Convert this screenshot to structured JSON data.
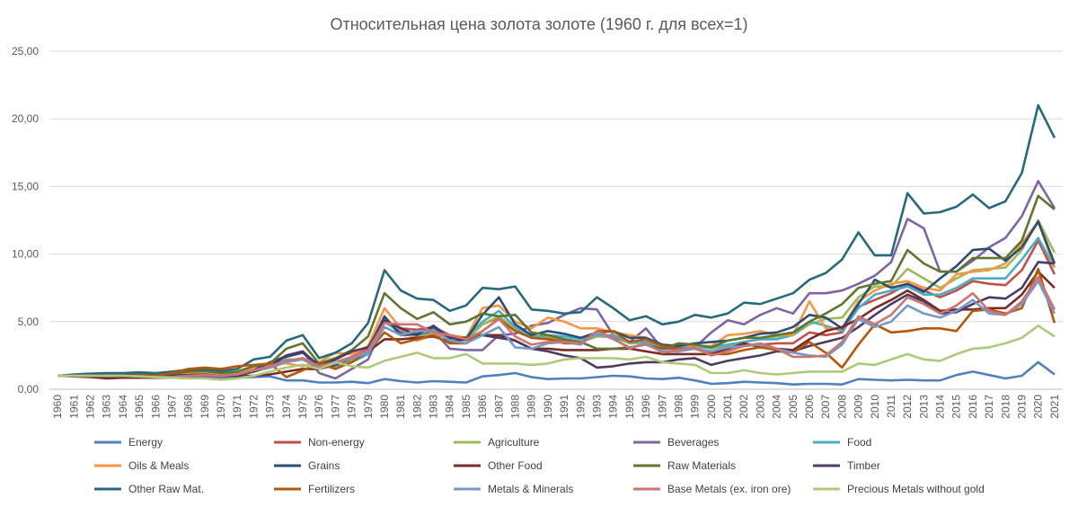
{
  "chart_data": {
    "type": "line",
    "title": "Относительная цена золота золоте (1960 г. для всех=1)",
    "xlabel": "",
    "ylabel": "",
    "ylim": [
      0,
      25
    ],
    "yticks": [
      "0,00",
      "5,00",
      "10,00",
      "15,00",
      "20,00",
      "25,00"
    ],
    "grid": true,
    "legend_position": "bottom",
    "x": [
      1960,
      1961,
      1962,
      1963,
      1964,
      1965,
      1966,
      1967,
      1968,
      1969,
      1970,
      1971,
      1972,
      1973,
      1974,
      1975,
      1976,
      1977,
      1978,
      1979,
      1980,
      1981,
      1982,
      1983,
      1984,
      1985,
      1986,
      1987,
      1988,
      1989,
      1990,
      1991,
      1992,
      1993,
      1994,
      1995,
      1996,
      1997,
      1998,
      1999,
      2000,
      2001,
      2002,
      2003,
      2004,
      2005,
      2006,
      2007,
      2008,
      2009,
      2010,
      2011,
      2012,
      2013,
      2014,
      2015,
      2016,
      2017,
      2018,
      2019,
      2020,
      2021
    ],
    "series": [
      {
        "name": "Energy",
        "color": "#4F81BD",
        "values": [
          1,
          1,
          0.95,
          0.9,
          0.85,
          0.85,
          0.85,
          0.85,
          0.85,
          0.85,
          0.8,
          0.85,
          0.9,
          0.95,
          0.65,
          0.65,
          0.5,
          0.5,
          0.55,
          0.45,
          0.75,
          0.6,
          0.5,
          0.6,
          0.55,
          0.5,
          0.95,
          1.05,
          1.2,
          0.9,
          0.75,
          0.8,
          0.8,
          0.9,
          1.0,
          0.95,
          0.8,
          0.75,
          0.85,
          0.65,
          0.4,
          0.45,
          0.55,
          0.5,
          0.45,
          0.35,
          0.4,
          0.4,
          0.35,
          0.75,
          0.7,
          0.65,
          0.7,
          0.65,
          0.65,
          1.05,
          1.3,
          1.05,
          0.8,
          1.0,
          2.0,
          1.1
        ]
      },
      {
        "name": "Non-energy",
        "color": "#C0504D",
        "values": [
          1,
          1,
          1,
          0.95,
          0.95,
          0.9,
          0.9,
          0.9,
          1.0,
          1.05,
          1.0,
          1.05,
          1.3,
          1.6,
          2.0,
          2.3,
          1.6,
          1.9,
          2.4,
          3.0,
          5.0,
          4.5,
          4.4,
          4.6,
          4.0,
          3.8,
          4.8,
          5.3,
          4.3,
          3.9,
          3.8,
          3.6,
          3.5,
          3.9,
          3.9,
          3.4,
          3.5,
          3.1,
          3.1,
          3.0,
          2.7,
          3.0,
          3.3,
          3.3,
          3.4,
          3.4,
          4.2,
          4.0,
          4.2,
          6.1,
          6.6,
          7.1,
          7.8,
          7.3,
          6.8,
          7.3,
          8.0,
          7.8,
          7.7,
          8.8,
          11.0,
          8.5
        ]
      },
      {
        "name": "Agriculture",
        "color": "#9BBB59",
        "values": [
          1,
          1,
          1,
          1,
          1,
          1,
          1,
          1,
          1.05,
          1.1,
          1.0,
          1.1,
          1.3,
          1.6,
          2.0,
          2.3,
          1.6,
          1.8,
          2.1,
          2.8,
          5.0,
          4.3,
          3.8,
          4.2,
          3.8,
          3.6,
          4.8,
          5.4,
          4.5,
          3.9,
          3.9,
          3.7,
          3.5,
          3.9,
          4.0,
          3.4,
          3.4,
          3.1,
          3.1,
          3.2,
          3.0,
          3.2,
          3.5,
          3.7,
          3.9,
          4.0,
          4.8,
          5.2,
          5.3,
          6.8,
          7.6,
          7.6,
          8.9,
          8.2,
          7.5,
          8.2,
          8.8,
          8.9,
          9.0,
          10.3,
          12.5,
          10.1
        ]
      },
      {
        "name": "Beverages",
        "color": "#8064A2",
        "values": [
          1,
          1,
          1,
          1,
          1,
          1,
          1,
          1,
          1,
          1,
          0.95,
          1.0,
          1.5,
          1.9,
          2.5,
          2.8,
          1.2,
          0.8,
          1.5,
          2.2,
          5.0,
          4.2,
          4.0,
          4.3,
          3.0,
          2.9,
          2.9,
          4.0,
          4.1,
          4.7,
          4.9,
          5.5,
          6.0,
          5.9,
          4.0,
          3.5,
          4.5,
          3.0,
          3.0,
          3.1,
          4.2,
          5.1,
          4.8,
          5.5,
          6.0,
          5.6,
          7.1,
          7.1,
          7.3,
          7.8,
          8.4,
          9.4,
          12.6,
          11.9,
          8.7,
          8.7,
          9.5,
          10.5,
          11.2,
          12.8,
          15.4,
          13.4
        ]
      },
      {
        "name": "Food",
        "color": "#4BACC6",
        "values": [
          1,
          1,
          1,
          1,
          1,
          1,
          1,
          1,
          1.1,
          1.1,
          1.0,
          1.1,
          1.4,
          1.8,
          2.2,
          2.2,
          1.6,
          1.7,
          2.0,
          2.6,
          5.2,
          4.0,
          4.0,
          4.5,
          3.7,
          3.8,
          5.0,
          5.8,
          4.6,
          3.8,
          4.0,
          3.9,
          3.7,
          4.0,
          4.0,
          3.5,
          3.5,
          3.2,
          3.2,
          3.1,
          3.1,
          3.3,
          3.5,
          3.7,
          3.7,
          4.0,
          5.0,
          4.7,
          4.3,
          6.0,
          7.0,
          7.3,
          7.6,
          7.0,
          7.0,
          7.5,
          8.2,
          8.2,
          8.2,
          9.6,
          11.2,
          9.0
        ]
      },
      {
        "name": "Oils & Meals",
        "color": "#F79646",
        "values": [
          1,
          1,
          1,
          1,
          1,
          1,
          1,
          1.1,
          1.2,
          1.2,
          1.1,
          1.2,
          1.5,
          2.0,
          1.9,
          1.7,
          2.0,
          2.7,
          2.6,
          3.2,
          6.0,
          4.5,
          3.6,
          4.0,
          4.0,
          3.8,
          6.0,
          6.2,
          5.0,
          4.5,
          5.3,
          5.0,
          4.5,
          4.5,
          4.2,
          4.0,
          3.8,
          3.2,
          3.3,
          3.2,
          3.2,
          4.0,
          4.1,
          4.3,
          4.0,
          4.0,
          6.5,
          4.5,
          4.5,
          6.5,
          7.3,
          7.8,
          8.0,
          7.5,
          7.3,
          8.5,
          8.7,
          8.8,
          9.3,
          10.8,
          12.4,
          9.0
        ]
      },
      {
        "name": "Grains",
        "color": "#2C4D75",
        "values": [
          1,
          1,
          1,
          1,
          1,
          1,
          1,
          1,
          1.05,
          1.05,
          1.0,
          1.1,
          1.4,
          2.0,
          2.4,
          2.7,
          1.8,
          1.8,
          2.3,
          2.9,
          5.4,
          4.0,
          4.1,
          4.6,
          3.8,
          3.7,
          5.5,
          6.8,
          4.8,
          4.0,
          4.3,
          4.1,
          3.8,
          4.2,
          4.3,
          3.8,
          3.8,
          3.3,
          3.2,
          3.4,
          3.5,
          3.6,
          3.8,
          4.1,
          4.2,
          4.6,
          5.5,
          5.3,
          4.5,
          6.3,
          8.1,
          7.5,
          7.8,
          7.2,
          8.2,
          9.1,
          10.3,
          10.4,
          9.5,
          10.5,
          12.4,
          9.3
        ]
      },
      {
        "name": "Other Food",
        "color": "#772C2A",
        "values": [
          1,
          0.95,
          0.9,
          0.8,
          0.85,
          0.85,
          0.85,
          0.9,
          1.0,
          1.05,
          1.0,
          1.0,
          1.0,
          1.1,
          1.3,
          1.5,
          1.5,
          1.8,
          2.3,
          2.8,
          3.7,
          3.7,
          3.8,
          3.9,
          3.5,
          3.7,
          4.0,
          4.0,
          3.6,
          3.0,
          3.0,
          2.9,
          2.9,
          2.9,
          3.0,
          3.0,
          2.8,
          2.6,
          2.6,
          2.6,
          2.6,
          3.0,
          3.4,
          3.1,
          3.0,
          2.9,
          3.7,
          4.3,
          4.6,
          5.2,
          6.0,
          6.6,
          7.3,
          6.6,
          5.8,
          5.9,
          5.9,
          6.0,
          6.0,
          7.0,
          8.7,
          7.5
        ]
      },
      {
        "name": "Raw Materials",
        "color": "#5F7530",
        "values": [
          1,
          1.05,
          1.1,
          1.1,
          1.1,
          1.1,
          1.1,
          1.15,
          1.3,
          1.35,
          1.2,
          1.3,
          1.7,
          1.9,
          3.0,
          3.4,
          1.9,
          2.3,
          2.9,
          3.9,
          7.1,
          6.0,
          5.2,
          5.7,
          4.8,
          5.0,
          5.6,
          5.4,
          5.5,
          4.2,
          4.0,
          3.7,
          3.5,
          3.0,
          3.0,
          3.1,
          3.3,
          3.0,
          3.4,
          3.3,
          3.1,
          3.6,
          3.8,
          3.8,
          4.0,
          4.2,
          5.0,
          5.6,
          6.3,
          7.5,
          7.8,
          8.0,
          10.3,
          9.3,
          8.7,
          8.7,
          9.7,
          9.7,
          9.7,
          11.0,
          14.3,
          13.3
        ]
      },
      {
        "name": "Timber",
        "color": "#4D3B62",
        "values": [
          1,
          1,
          1,
          1,
          1,
          1,
          1,
          1,
          1.05,
          1.1,
          1.0,
          1.0,
          1.3,
          1.7,
          2.5,
          2.8,
          1.7,
          2.2,
          2.8,
          3.1,
          5.1,
          4.5,
          4.0,
          4.7,
          3.8,
          3.8,
          4.0,
          3.8,
          3.6,
          3.0,
          2.8,
          2.5,
          2.3,
          1.6,
          1.7,
          1.9,
          2.0,
          2.0,
          2.2,
          2.3,
          1.8,
          2.1,
          2.3,
          2.5,
          2.8,
          2.8,
          3.2,
          3.5,
          3.8,
          4.6,
          5.5,
          6.3,
          7.0,
          6.5,
          5.6,
          5.7,
          6.3,
          6.8,
          6.7,
          7.5,
          9.4,
          9.3
        ]
      },
      {
        "name": "Other Raw Mat.",
        "color": "#276A7C",
        "values": [
          1,
          1.1,
          1.15,
          1.2,
          1.2,
          1.25,
          1.2,
          1.3,
          1.45,
          1.5,
          1.35,
          1.5,
          2.2,
          2.4,
          3.6,
          4.0,
          2.3,
          2.7,
          3.4,
          4.9,
          8.8,
          7.3,
          6.7,
          6.6,
          5.8,
          6.2,
          7.5,
          7.4,
          7.6,
          5.9,
          5.8,
          5.6,
          5.7,
          6.8,
          6.0,
          5.1,
          5.4,
          4.8,
          5.0,
          5.5,
          5.3,
          5.6,
          6.4,
          6.3,
          6.7,
          7.1,
          8.1,
          8.6,
          9.6,
          11.6,
          9.9,
          9.9,
          14.5,
          13.0,
          13.1,
          13.5,
          14.4,
          13.4,
          13.9,
          16.0,
          21.0,
          18.6
        ]
      },
      {
        "name": "Fertilizers",
        "color": "#B65708",
        "values": [
          1,
          1,
          1,
          1,
          1,
          1,
          1,
          1.2,
          1.5,
          1.6,
          1.5,
          1.7,
          1.8,
          1.9,
          0.9,
          1.4,
          1.9,
          1.5,
          2.0,
          2.8,
          4.2,
          3.4,
          3.7,
          4.0,
          3.4,
          3.4,
          4.3,
          5.2,
          4.3,
          3.8,
          3.7,
          3.4,
          3.4,
          4.3,
          4.3,
          3.5,
          3.7,
          3.2,
          3.0,
          3.0,
          2.6,
          2.6,
          2.9,
          3.1,
          2.9,
          2.7,
          3.5,
          2.7,
          1.6,
          3.3,
          4.8,
          4.2,
          4.3,
          4.5,
          4.5,
          4.3,
          5.8,
          5.9,
          5.6,
          6.0,
          8.9,
          4.9
        ]
      },
      {
        "name": "Metals  & Minerals",
        "color": "#729ACA",
        "values": [
          1,
          1,
          1,
          1,
          1,
          0.95,
          0.9,
          0.9,
          1.0,
          1.05,
          1.0,
          1.1,
          1.4,
          1.6,
          2.0,
          2.2,
          1.6,
          1.9,
          2.3,
          2.7,
          4.6,
          4.0,
          4.3,
          4.3,
          3.6,
          3.4,
          4.0,
          4.6,
          3.1,
          3.0,
          3.4,
          3.5,
          3.3,
          4.2,
          3.7,
          3.1,
          3.3,
          2.8,
          2.8,
          3.0,
          2.8,
          3.1,
          3.2,
          3.3,
          3.0,
          2.7,
          2.5,
          2.4,
          3.3,
          5.2,
          4.6,
          5.0,
          6.2,
          5.6,
          5.3,
          5.8,
          6.6,
          5.6,
          5.5,
          6.3,
          8.0,
          5.6
        ]
      },
      {
        "name": "Base Metals (ex. iron ore)",
        "color": "#CD7371",
        "values": [
          1,
          1,
          1,
          1,
          1,
          0.95,
          0.9,
          0.9,
          1.0,
          1.05,
          1.0,
          1.1,
          1.4,
          1.7,
          2.1,
          2.3,
          1.7,
          2.0,
          2.4,
          2.9,
          4.9,
          4.8,
          4.8,
          4.2,
          4.0,
          3.7,
          4.3,
          5.2,
          3.9,
          3.3,
          3.5,
          3.5,
          3.4,
          4.3,
          3.8,
          3.0,
          3.4,
          2.7,
          2.9,
          3.1,
          2.5,
          2.8,
          3.2,
          3.4,
          3.0,
          2.4,
          2.4,
          2.5,
          3.5,
          5.4,
          4.8,
          5.5,
          6.8,
          6.3,
          5.6,
          6.2,
          7.1,
          5.8,
          5.5,
          6.5,
          8.3,
          5.9
        ]
      },
      {
        "name": "Precious Metals without gold",
        "color": "#AFC97A",
        "values": [
          1,
          1,
          1,
          1,
          1,
          0.95,
          0.9,
          0.85,
          0.8,
          0.8,
          0.7,
          0.8,
          1.0,
          1.3,
          1.6,
          1.8,
          1.5,
          2.0,
          1.7,
          1.6,
          2.1,
          2.4,
          2.7,
          2.3,
          2.3,
          2.6,
          1.9,
          1.9,
          1.9,
          1.8,
          1.9,
          2.2,
          2.3,
          2.3,
          2.3,
          2.2,
          2.4,
          2.0,
          1.9,
          1.8,
          1.2,
          1.2,
          1.4,
          1.2,
          1.1,
          1.2,
          1.3,
          1.3,
          1.3,
          1.9,
          1.8,
          2.2,
          2.6,
          2.2,
          2.1,
          2.6,
          3.0,
          3.1,
          3.4,
          3.8,
          4.7,
          3.9
        ]
      }
    ]
  }
}
